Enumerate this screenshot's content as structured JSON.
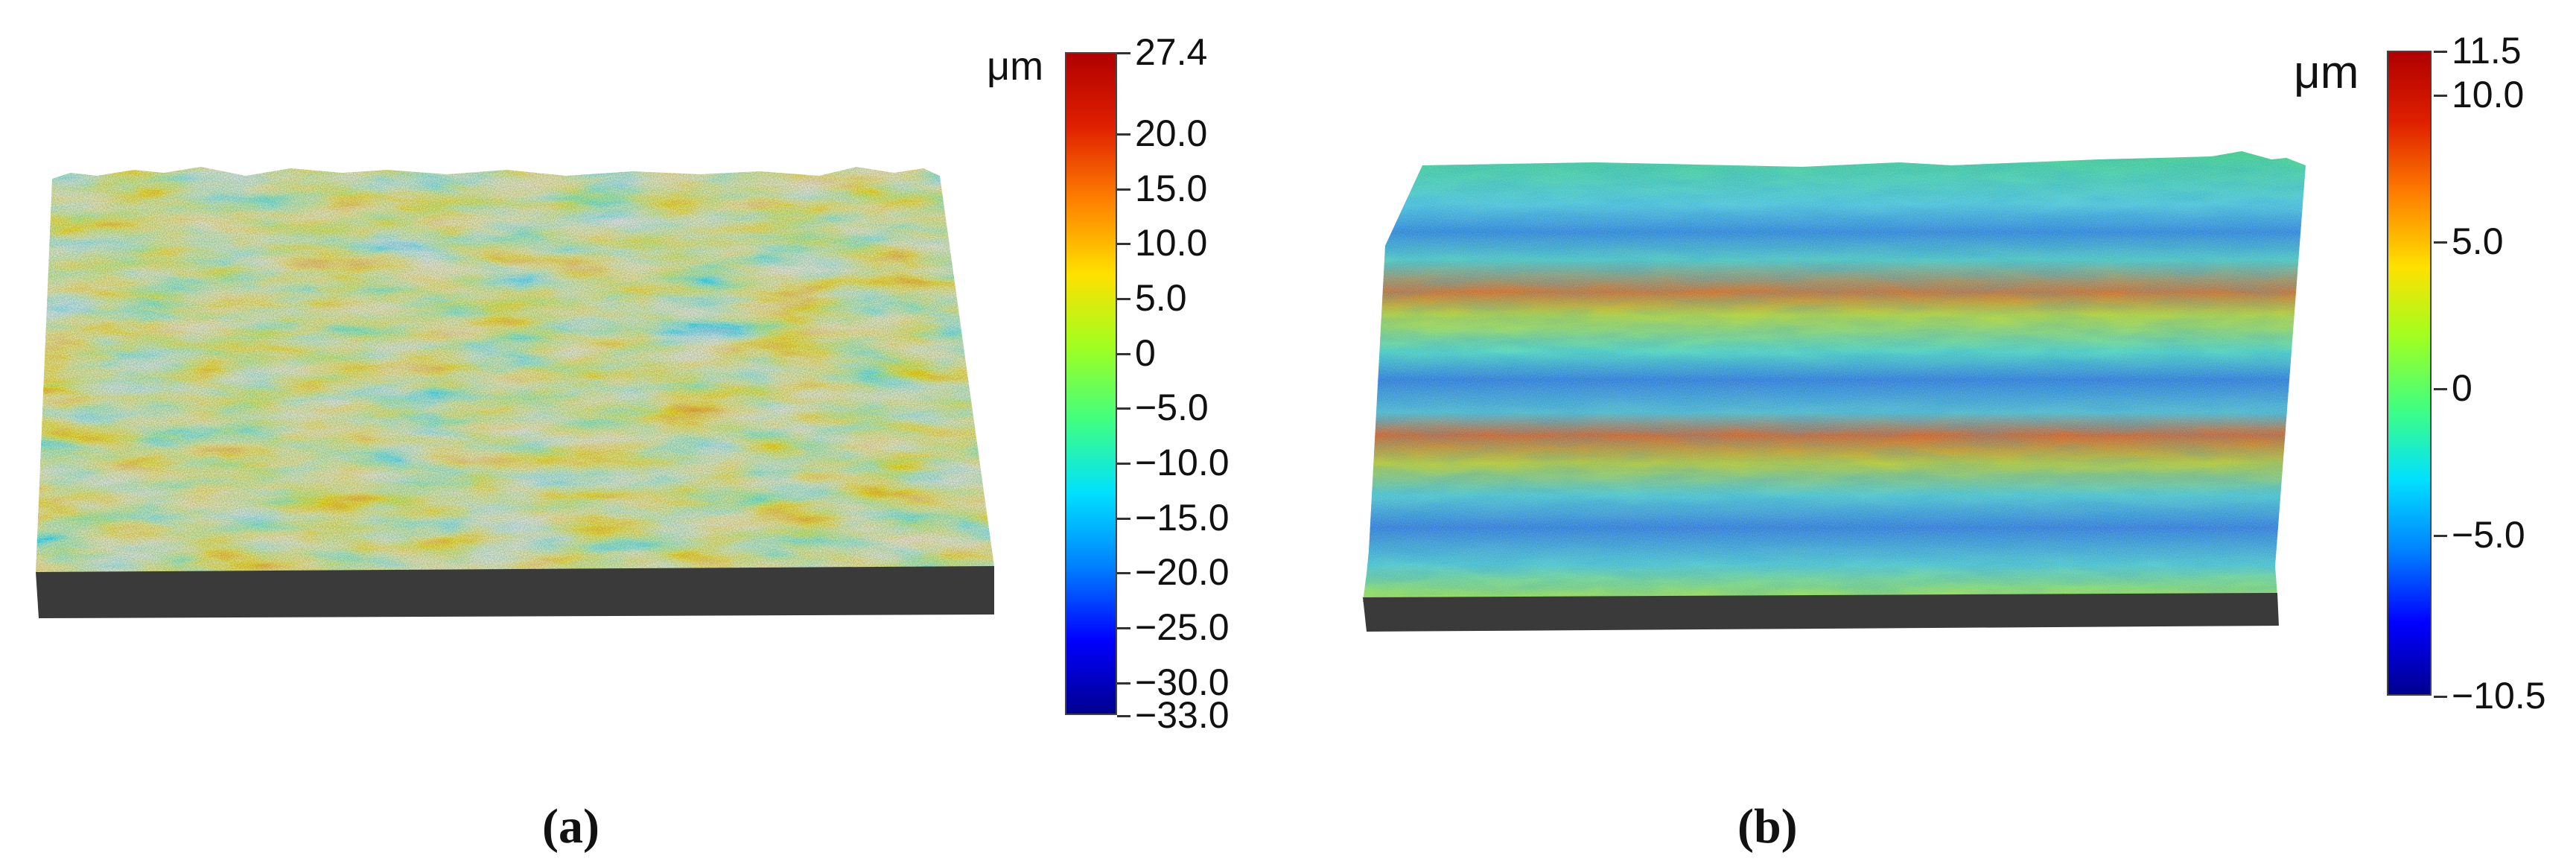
{
  "panels": [
    {
      "caption": "(a)",
      "colorbar": {
        "unit": "μm",
        "max": 27.4,
        "min": -33.0,
        "ticks": [
          "27.4",
          "20.0",
          "15.0",
          "10.0",
          "5.0",
          "0",
          "−5.0",
          "−10.0",
          "−15.0",
          "−20.0",
          "−25.0",
          "−30.0",
          "−33.0"
        ],
        "tick_values": [
          27.4,
          20,
          15,
          10,
          5,
          0,
          -5,
          -10,
          -15,
          -20,
          -25,
          -30,
          -33
        ]
      }
    },
    {
      "caption": "(b)",
      "colorbar": {
        "unit": "μm",
        "max": 11.5,
        "min": -10.5,
        "ticks": [
          "11.5",
          "10.0",
          "5.0",
          "0",
          "−5.0",
          "−10.5"
        ],
        "tick_values": [
          11.5,
          10,
          5,
          0,
          -5,
          -10.5
        ]
      }
    }
  ],
  "colormap": [
    "#00008f",
    "#0000ff",
    "#0080ff",
    "#00e0ff",
    "#40ff80",
    "#a0ff20",
    "#ffe000",
    "#ff8000",
    "#e02000",
    "#b00000"
  ]
}
